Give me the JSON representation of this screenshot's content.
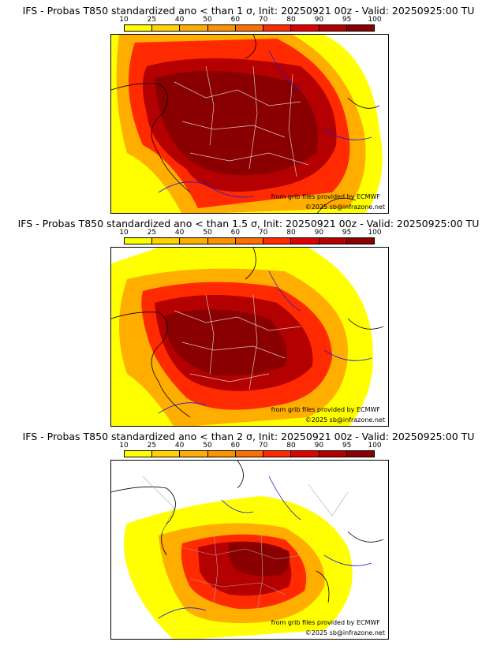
{
  "colorbar": {
    "ticks": [
      "10",
      "25",
      "40",
      "50",
      "60",
      "70",
      "80",
      "90",
      "95",
      "100"
    ],
    "colors": [
      "#ffff00",
      "#ffd200",
      "#ffae00",
      "#ff9200",
      "#ff6e00",
      "#ff2a00",
      "#e20000",
      "#b40000",
      "#8a0000"
    ]
  },
  "panels": [
    {
      "title": "IFS - Probas T850  standardized ano < than 1 σ, Init: 20250921 00z - Valid: 20250925:00 TU",
      "threshold": "1 σ",
      "source_text": "from grib files provided by ECMWF",
      "copyright": "©2025 sb@infrazone.net"
    },
    {
      "title": "IFS - Probas T850  standardized ano < than 1.5 σ, Init: 20250921 00z - Valid: 20250925:00 TU",
      "threshold": "1.5 σ",
      "source_text": "from grib files provided by ECMWF",
      "copyright": "©2025 sb@infrazone.net"
    },
    {
      "title": "IFS - Probas T850  standardized ano < than 2 σ, Init: 20250921 00z - Valid: 20250925:00 TU",
      "threshold": "2 σ",
      "source_text": "from grib files provided by ECMWF",
      "copyright": "©2025 sb@infrazone.net"
    }
  ]
}
